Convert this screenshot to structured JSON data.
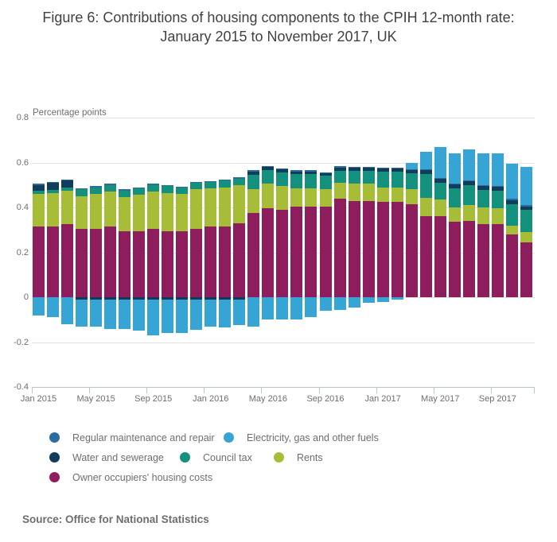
{
  "title": "Figure 6: Contributions of housing components to the CPIH 12-month rate: January 2015 to November 2017, UK",
  "axis_title": "Percentage points",
  "source": "Source: Office for National Statistics",
  "colors": {
    "maintenance": "#2d6d9d",
    "electricity": "#36a5d6",
    "water": "#113d5c",
    "council_tax": "#14917c",
    "rents": "#a8bd37",
    "ooh": "#8e1d5e"
  },
  "legend": {
    "maintenance": "Regular maintenance and repair",
    "electricity": "Electricity, gas and other fuels",
    "water": "Water and sewerage",
    "council_tax": "Council tax",
    "rents": "Rents",
    "ooh": "Owner occupiers' housing costs"
  },
  "chart_data": {
    "type": "bar",
    "stacked": true,
    "title": "Figure 6: Contributions of housing components to the CPIH 12-month rate: January 2015 to November 2017, UK",
    "ylabel": "Percentage points",
    "ylim": [
      -0.4,
      0.8
    ],
    "grid": true,
    "legend_position": "bottom",
    "y_ticks": [
      {
        "v": 0.8,
        "label": "0.8"
      },
      {
        "v": 0.6,
        "label": "0.6"
      },
      {
        "v": 0.4,
        "label": "0.4"
      },
      {
        "v": 0.2,
        "label": "0.2"
      },
      {
        "v": 0.0,
        "label": "0"
      },
      {
        "v": -0.2,
        "label": "-0.2"
      },
      {
        "v": -0.4,
        "label": "-0.4"
      }
    ],
    "x_ticks": [
      {
        "month_index": 0,
        "label": "Jan 2015"
      },
      {
        "month_index": 4,
        "label": "May 2015"
      },
      {
        "month_index": 8,
        "label": "Sep 2015"
      },
      {
        "month_index": 12,
        "label": "Jan 2016"
      },
      {
        "month_index": 16,
        "label": "May 2016"
      },
      {
        "month_index": 20,
        "label": "Sep 2016"
      },
      {
        "month_index": 24,
        "label": "Jan 2017"
      },
      {
        "month_index": 28,
        "label": "May 2017"
      },
      {
        "month_index": 32,
        "label": "Sep 2017"
      }
    ],
    "categories": [
      "Jan 2015",
      "Feb 2015",
      "Mar 2015",
      "Apr 2015",
      "May 2015",
      "Jun 2015",
      "Jul 2015",
      "Aug 2015",
      "Sep 2015",
      "Oct 2015",
      "Nov 2015",
      "Dec 2015",
      "Jan 2016",
      "Feb 2016",
      "Mar 2016",
      "Apr 2016",
      "May 2016",
      "Jun 2016",
      "Jul 2016",
      "Aug 2016",
      "Sep 2016",
      "Oct 2016",
      "Nov 2016",
      "Dec 2016",
      "Jan 2017",
      "Feb 2017",
      "Mar 2017",
      "Apr 2017",
      "May 2017",
      "Jun 2017",
      "Jul 2017",
      "Aug 2017",
      "Sep 2017",
      "Oct 2017",
      "Nov 2017"
    ],
    "series": [
      {
        "id": "ooh",
        "name": "Owner occupiers' housing costs",
        "values": [
          0.315,
          0.315,
          0.325,
          0.305,
          0.305,
          0.315,
          0.295,
          0.295,
          0.305,
          0.295,
          0.295,
          0.305,
          0.315,
          0.315,
          0.33,
          0.375,
          0.395,
          0.39,
          0.405,
          0.405,
          0.405,
          0.44,
          0.43,
          0.43,
          0.425,
          0.425,
          0.415,
          0.36,
          0.36,
          0.335,
          0.34,
          0.325,
          0.325,
          0.28,
          0.245
        ]
      },
      {
        "id": "rents",
        "name": "Rents",
        "values": [
          0.145,
          0.15,
          0.15,
          0.145,
          0.155,
          0.155,
          0.15,
          0.16,
          0.165,
          0.17,
          0.165,
          0.175,
          0.17,
          0.175,
          0.17,
          0.105,
          0.11,
          0.105,
          0.08,
          0.08,
          0.075,
          0.068,
          0.075,
          0.075,
          0.063,
          0.063,
          0.068,
          0.082,
          0.075,
          0.066,
          0.072,
          0.075,
          0.07,
          0.04,
          0.045
        ]
      },
      {
        "id": "council_tax",
        "name": "Council tax",
        "values": [
          0.015,
          0.013,
          0.012,
          0.03,
          0.03,
          0.03,
          0.03,
          0.03,
          0.03,
          0.03,
          0.027,
          0.03,
          0.028,
          0.03,
          0.028,
          0.065,
          0.06,
          0.062,
          0.062,
          0.062,
          0.06,
          0.056,
          0.057,
          0.057,
          0.07,
          0.07,
          0.068,
          0.106,
          0.075,
          0.083,
          0.086,
          0.077,
          0.079,
          0.095,
          0.098
        ]
      },
      {
        "id": "water",
        "name": "Water and sewerage",
        "values": [
          0.025,
          0.03,
          0.033,
          -0.012,
          -0.01,
          -0.01,
          -0.01,
          -0.01,
          -0.01,
          -0.01,
          -0.01,
          -0.01,
          -0.01,
          -0.01,
          -0.01,
          0.015,
          0.015,
          0.013,
          0.013,
          0.013,
          0.012,
          0.014,
          0.014,
          0.014,
          0.014,
          0.014,
          0.014,
          0.017,
          0.017,
          0.017,
          0.018,
          0.017,
          0.018,
          0.018,
          0.016
        ]
      },
      {
        "id": "maintenance",
        "name": "Regular maintenance and repair",
        "values": [
          0.005,
          0.005,
          0.005,
          0.005,
          0.005,
          0.005,
          0.005,
          0.005,
          0.005,
          0.005,
          0.005,
          0.005,
          0.005,
          0.005,
          0.005,
          0.005,
          0.005,
          0.005,
          0.005,
          0.005,
          0.005,
          0.005,
          0.005,
          0.005,
          0.005,
          0.005,
          0.005,
          0.005,
          0.005,
          0.005,
          0.005,
          0.005,
          0.005,
          0.005,
          0.005
        ]
      },
      {
        "id": "electricity",
        "name": "Electricity, gas and other fuels",
        "values": [
          -0.08,
          -0.09,
          -0.12,
          -0.118,
          -0.12,
          -0.13,
          -0.13,
          -0.14,
          -0.16,
          -0.148,
          -0.15,
          -0.135,
          -0.122,
          -0.123,
          -0.115,
          -0.13,
          -0.1,
          -0.1,
          -0.1,
          -0.09,
          -0.06,
          -0.055,
          -0.045,
          -0.025,
          -0.02,
          -0.01,
          0.03,
          0.078,
          0.138,
          0.133,
          0.139,
          0.14,
          0.142,
          0.155,
          0.17
        ]
      }
    ]
  }
}
